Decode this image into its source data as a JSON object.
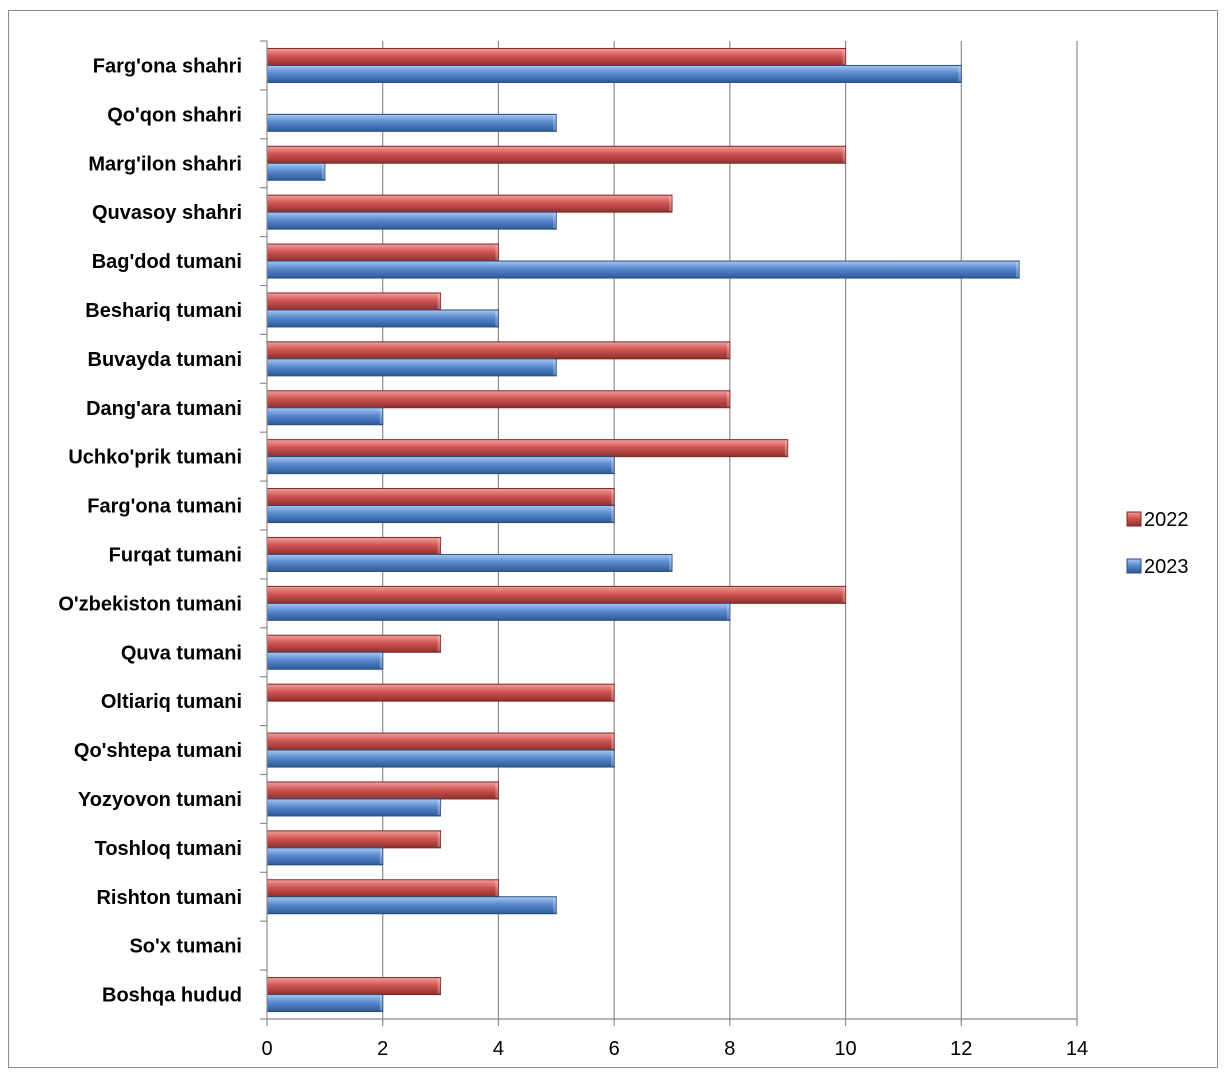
{
  "chart_data": {
    "type": "bar",
    "orientation": "horizontal",
    "categories": [
      "Farg'ona shahri",
      "Qo'qon shahri",
      "Marg'ilon shahri",
      "Quvasoy shahri",
      "Bag'dod tumani",
      "Beshariq tumani",
      "Buvayda tumani",
      "Dang'ara tumani",
      "Uchko'prik tumani",
      "Farg'ona tumani",
      "Furqat tumani",
      "O'zbekiston tumani",
      "Quva tumani",
      "Oltiariq tumani",
      "Qo'shtepa tumani",
      "Yozyovon tumani",
      "Toshloq tumani",
      "Rishton tumani",
      "So'x tumani",
      "Boshqa hudud"
    ],
    "series": [
      {
        "name": "2022",
        "color": "#c0504d",
        "values": [
          10,
          0,
          10,
          7,
          4,
          3,
          8,
          8,
          9,
          6,
          3,
          10,
          3,
          6,
          6,
          4,
          3,
          4,
          0,
          3
        ]
      },
      {
        "name": "2023",
        "color": "#4f81bd",
        "values": [
          12,
          5,
          1,
          5,
          13,
          4,
          5,
          2,
          6,
          6,
          7,
          8,
          2,
          0,
          6,
          3,
          2,
          5,
          0,
          2
        ]
      }
    ],
    "xlim": [
      0,
      14
    ],
    "xticks": [
      "0",
      "2",
      "4",
      "6",
      "8",
      "10",
      "12",
      "14"
    ],
    "grid": true,
    "legend_position": "right",
    "title": "",
    "xlabel": "",
    "ylabel": ""
  }
}
